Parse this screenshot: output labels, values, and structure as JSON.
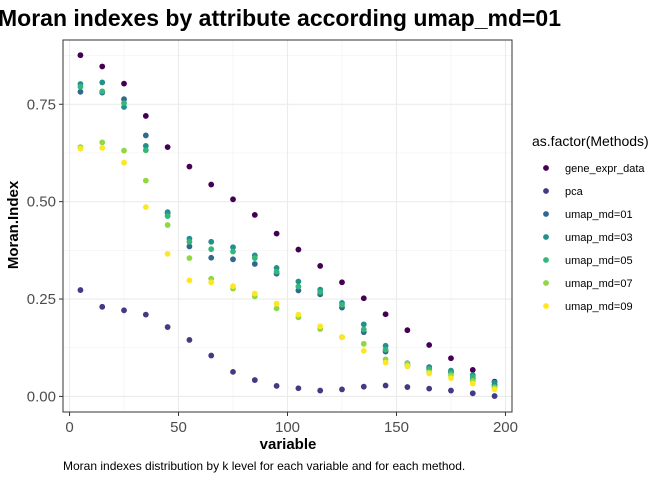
{
  "chart_data": {
    "type": "scatter",
    "title": "Moran indexes by attribute according  umap_md=01",
    "xlabel": "variable",
    "ylabel": "Moran.Index",
    "caption": "Moran indexes distribution by k level for each variable and for each method.",
    "xlim": [
      -3,
      203
    ],
    "ylim": [
      -0.04,
      0.915
    ],
    "xticks": [
      0,
      50,
      100,
      150,
      200
    ],
    "xtick_labels": [
      "0",
      "50",
      "100",
      "150",
      "200"
    ],
    "yticks": [
      0.0,
      0.25,
      0.5,
      0.75
    ],
    "ytick_labels": [
      "0.00",
      "0.25",
      "0.50",
      "0.75"
    ],
    "grid": true,
    "legend": {
      "title": "as.factor(Methods)",
      "position": "right"
    },
    "x": [
      5,
      15,
      25,
      35,
      45,
      55,
      65,
      75,
      85,
      95,
      105,
      115,
      125,
      135,
      145,
      155,
      165,
      175,
      185,
      195
    ],
    "series": [
      {
        "name": "gene_expr_data",
        "color": "#440154",
        "values": [
          0.876,
          0.847,
          0.803,
          0.72,
          0.64,
          0.59,
          0.544,
          0.506,
          0.466,
          0.418,
          0.377,
          0.335,
          0.293,
          0.252,
          0.211,
          0.17,
          0.132,
          0.098,
          0.068,
          0.038
        ]
      },
      {
        "name": "pca",
        "color": "#443983",
        "values": [
          0.273,
          0.23,
          0.221,
          0.21,
          0.178,
          0.145,
          0.105,
          0.063,
          0.042,
          0.027,
          0.021,
          0.015,
          0.018,
          0.025,
          0.028,
          0.024,
          0.02,
          0.015,
          0.008,
          0.001
        ]
      },
      {
        "name": "umap_md=01",
        "color": "#31688e",
        "values": [
          0.782,
          0.78,
          0.763,
          0.67,
          0.47,
          0.385,
          0.356,
          0.352,
          0.34,
          0.315,
          0.272,
          0.262,
          0.228,
          0.165,
          0.115,
          0.085,
          0.075,
          0.063,
          0.045,
          0.03
        ]
      },
      {
        "name": "umap_md=03",
        "color": "#21918c",
        "values": [
          0.802,
          0.806,
          0.743,
          0.643,
          0.473,
          0.405,
          0.397,
          0.383,
          0.362,
          0.33,
          0.295,
          0.274,
          0.24,
          0.185,
          0.13,
          0.08,
          0.073,
          0.066,
          0.055,
          0.036
        ]
      },
      {
        "name": "umap_md=05",
        "color": "#35b779",
        "values": [
          0.795,
          0.783,
          0.753,
          0.632,
          0.463,
          0.397,
          0.378,
          0.372,
          0.355,
          0.32,
          0.282,
          0.268,
          0.235,
          0.172,
          0.12,
          0.078,
          0.07,
          0.06,
          0.05,
          0.025
        ]
      },
      {
        "name": "umap_md=07",
        "color": "#90d743",
        "values": [
          0.64,
          0.652,
          0.631,
          0.554,
          0.44,
          0.355,
          0.302,
          0.277,
          0.257,
          0.226,
          0.203,
          0.173,
          0.152,
          0.135,
          0.095,
          0.084,
          0.062,
          0.054,
          0.04,
          0.022
        ]
      },
      {
        "name": "umap_md=09",
        "color": "#fde725",
        "values": [
          0.636,
          0.638,
          0.6,
          0.486,
          0.366,
          0.298,
          0.293,
          0.283,
          0.264,
          0.238,
          0.21,
          0.18,
          0.152,
          0.117,
          0.087,
          0.078,
          0.059,
          0.047,
          0.033,
          0.018
        ]
      }
    ]
  }
}
